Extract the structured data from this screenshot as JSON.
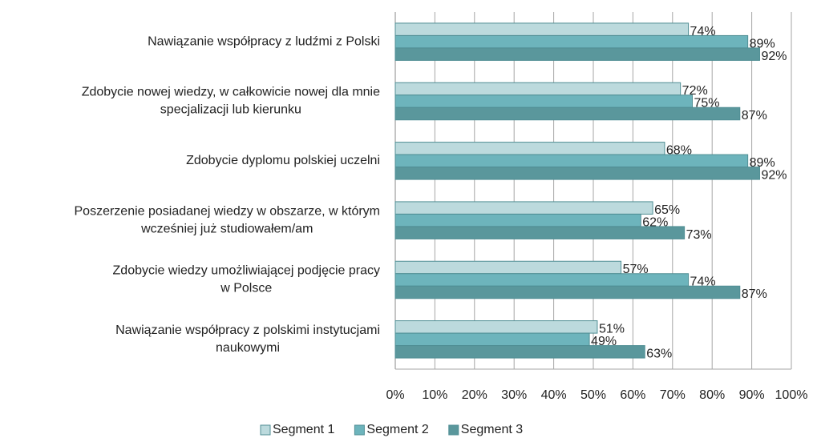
{
  "chart_data": {
    "type": "bar",
    "orientation": "horizontal",
    "categories": [
      [
        "Nawiązanie współpracy z ludźmi z Polski"
      ],
      [
        "Zdobycie nowej wiedzy, w całkowicie nowej dla mnie",
        "specjalizacji lub kierunku"
      ],
      [
        "Zdobycie dyplomu polskiej uczelni"
      ],
      [
        "Poszerzenie posiadanej wiedzy w obszarze, w którym",
        "wcześniej już studiowałem/am"
      ],
      [
        "Zdobycie wiedzy umożliwiającej podjęcie pracy",
        "w Polsce"
      ],
      [
        "Nawiązanie współpracy z polskimi instytucjami",
        "naukowymi"
      ]
    ],
    "series": [
      {
        "name": "Segment 1",
        "color": "#bcdadd",
        "values": [
          74,
          72,
          68,
          65,
          57,
          51
        ],
        "value_labels": [
          "74%",
          "72%",
          "68%",
          "65%",
          "57%",
          "51%"
        ]
      },
      {
        "name": "Segment 2",
        "color": "#6db4bc",
        "values": [
          89,
          75,
          89,
          62,
          74,
          49
        ],
        "value_labels": [
          "89%",
          "75%",
          "89%",
          "62%",
          "74%",
          "49%"
        ]
      },
      {
        "name": "Segment 3",
        "color": "#5a979c",
        "values": [
          92,
          87,
          92,
          73,
          87,
          63
        ],
        "value_labels": [
          "92%",
          "87%",
          "92%",
          "73%",
          "87%",
          "63%"
        ]
      }
    ],
    "xlim": [
      0,
      100
    ],
    "xticks": [
      {
        "value": 0,
        "label": "0%"
      },
      {
        "value": 10,
        "label": "10%"
      },
      {
        "value": 20,
        "label": "20%"
      },
      {
        "value": 30,
        "label": "30%"
      },
      {
        "value": 40,
        "label": "40%"
      },
      {
        "value": 50,
        "label": "50%"
      },
      {
        "value": 60,
        "label": "60%"
      },
      {
        "value": 70,
        "label": "70%"
      },
      {
        "value": 80,
        "label": "80%"
      },
      {
        "value": 90,
        "label": "90%"
      },
      {
        "value": 100,
        "label": "100%"
      }
    ],
    "grid": true,
    "legend": "bottom"
  }
}
